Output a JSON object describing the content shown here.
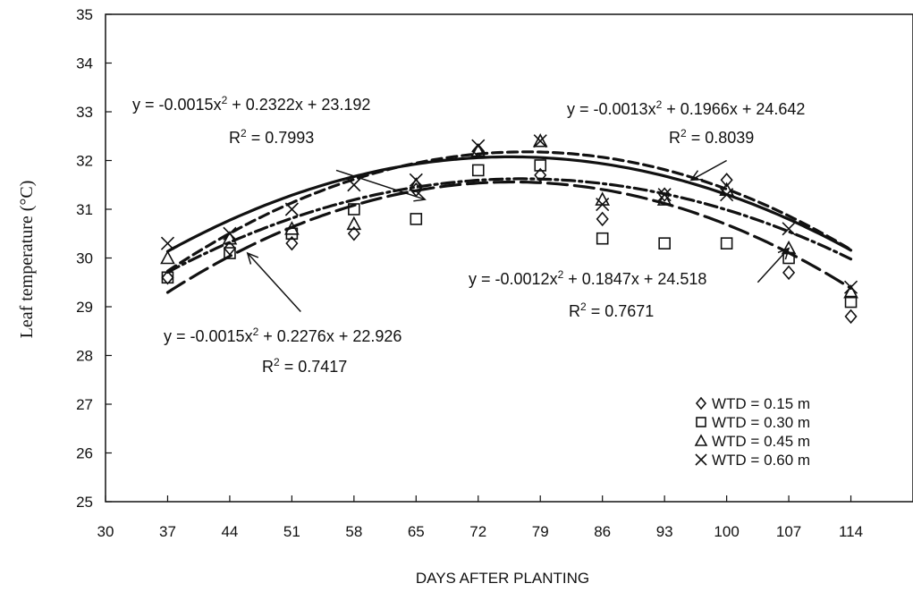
{
  "chart_data": {
    "type": "scatter",
    "xlabel": "DAYS AFTER PLANTING",
    "ylabel": "Leaf temperature (°C)",
    "xlim": [
      30,
      121
    ],
    "ylim": [
      25,
      35
    ],
    "x_ticks": [
      30,
      37,
      44,
      51,
      58,
      65,
      72,
      79,
      86,
      93,
      100,
      107,
      114
    ],
    "y_ticks": [
      25,
      26,
      27,
      28,
      29,
      30,
      31,
      32,
      33,
      34,
      35
    ],
    "legend_position": "bottom-right",
    "series": [
      {
        "name": "WTD = 0.15 m",
        "marker": "diamond",
        "line_style": "dashdot",
        "x": [
          37,
          44,
          51,
          58,
          65,
          72,
          79,
          86,
          93,
          100,
          107,
          114
        ],
        "y": [
          29.6,
          30.2,
          30.3,
          30.5,
          31.4,
          32.2,
          31.7,
          30.8,
          31.3,
          31.6,
          29.7,
          28.8
        ],
        "fit": {
          "a": -0.0012,
          "b": 0.1847,
          "c": 24.518,
          "r2": "0.7671"
        }
      },
      {
        "name": "WTD = 0.30 m",
        "marker": "square",
        "line_style": "longdash",
        "x": [
          37,
          44,
          51,
          58,
          65,
          72,
          79,
          86,
          93,
          100,
          107,
          114
        ],
        "y": [
          29.6,
          30.1,
          30.5,
          31.0,
          30.8,
          31.8,
          31.9,
          30.4,
          30.3,
          30.3,
          30.0,
          29.1
        ],
        "fit": {
          "a": -0.0015,
          "b": 0.2276,
          "c": 22.926,
          "r2": "0.7417"
        }
      },
      {
        "name": "WTD = 0.45 m",
        "marker": "triangle",
        "line_style": "solid",
        "x": [
          37,
          44,
          51,
          58,
          65,
          72,
          79,
          86,
          93,
          100,
          107,
          114
        ],
        "y": [
          30.0,
          30.4,
          30.6,
          30.7,
          31.5,
          32.2,
          32.4,
          31.2,
          31.2,
          31.4,
          30.2,
          29.3
        ],
        "fit": {
          "a": -0.0013,
          "b": 0.1966,
          "c": 24.642,
          "r2": "0.8039"
        }
      },
      {
        "name": "WTD = 0.60 m",
        "marker": "x",
        "line_style": "dashed",
        "x": [
          37,
          44,
          51,
          58,
          65,
          72,
          79,
          86,
          93,
          100,
          107,
          114
        ],
        "y": [
          30.3,
          30.5,
          31.0,
          31.5,
          31.6,
          32.3,
          32.4,
          31.1,
          31.3,
          31.3,
          30.6,
          29.4
        ],
        "fit": {
          "a": -0.0015,
          "b": 0.2322,
          "c": 23.192,
          "r2": "0.7993"
        }
      }
    ],
    "annotations": [
      {
        "eq_prefix": "y = -0.0015x",
        "eq_sup": "2",
        "eq_suffix": " + 0.2322x + 23.192",
        "r2_label": "R",
        "r2_sup": "2",
        "r2_value": " = 0.7993",
        "arrow_from": [
          56,
          31.8
        ],
        "arrow_to": [
          66,
          31.2
        ]
      },
      {
        "eq_prefix": "y = -0.0013x",
        "eq_sup": "2",
        "eq_suffix": " + 0.1966x + 24.642",
        "r2_label": "R",
        "r2_sup": "2",
        "r2_value": " = 0.8039",
        "arrow_from": [
          100,
          32.0
        ],
        "arrow_to": [
          96,
          31.6
        ]
      },
      {
        "eq_prefix": "y = -0.0012x",
        "eq_sup": "2",
        "eq_suffix": " + 0.1847x + 24.518",
        "r2_label": "R",
        "r2_sup": "2",
        "r2_value": " = 0.7671",
        "arrow_from": [
          103.5,
          29.5
        ],
        "arrow_to": [
          107,
          30.2
        ]
      },
      {
        "eq_prefix": "y = -0.0015x",
        "eq_sup": "2",
        "eq_suffix": " + 0.2276x + 22.926",
        "r2_label": "R",
        "r2_sup": "2",
        "r2_value": " = 0.7417",
        "arrow_from": [
          52,
          28.9
        ],
        "arrow_to": [
          46,
          30.1
        ]
      }
    ]
  }
}
